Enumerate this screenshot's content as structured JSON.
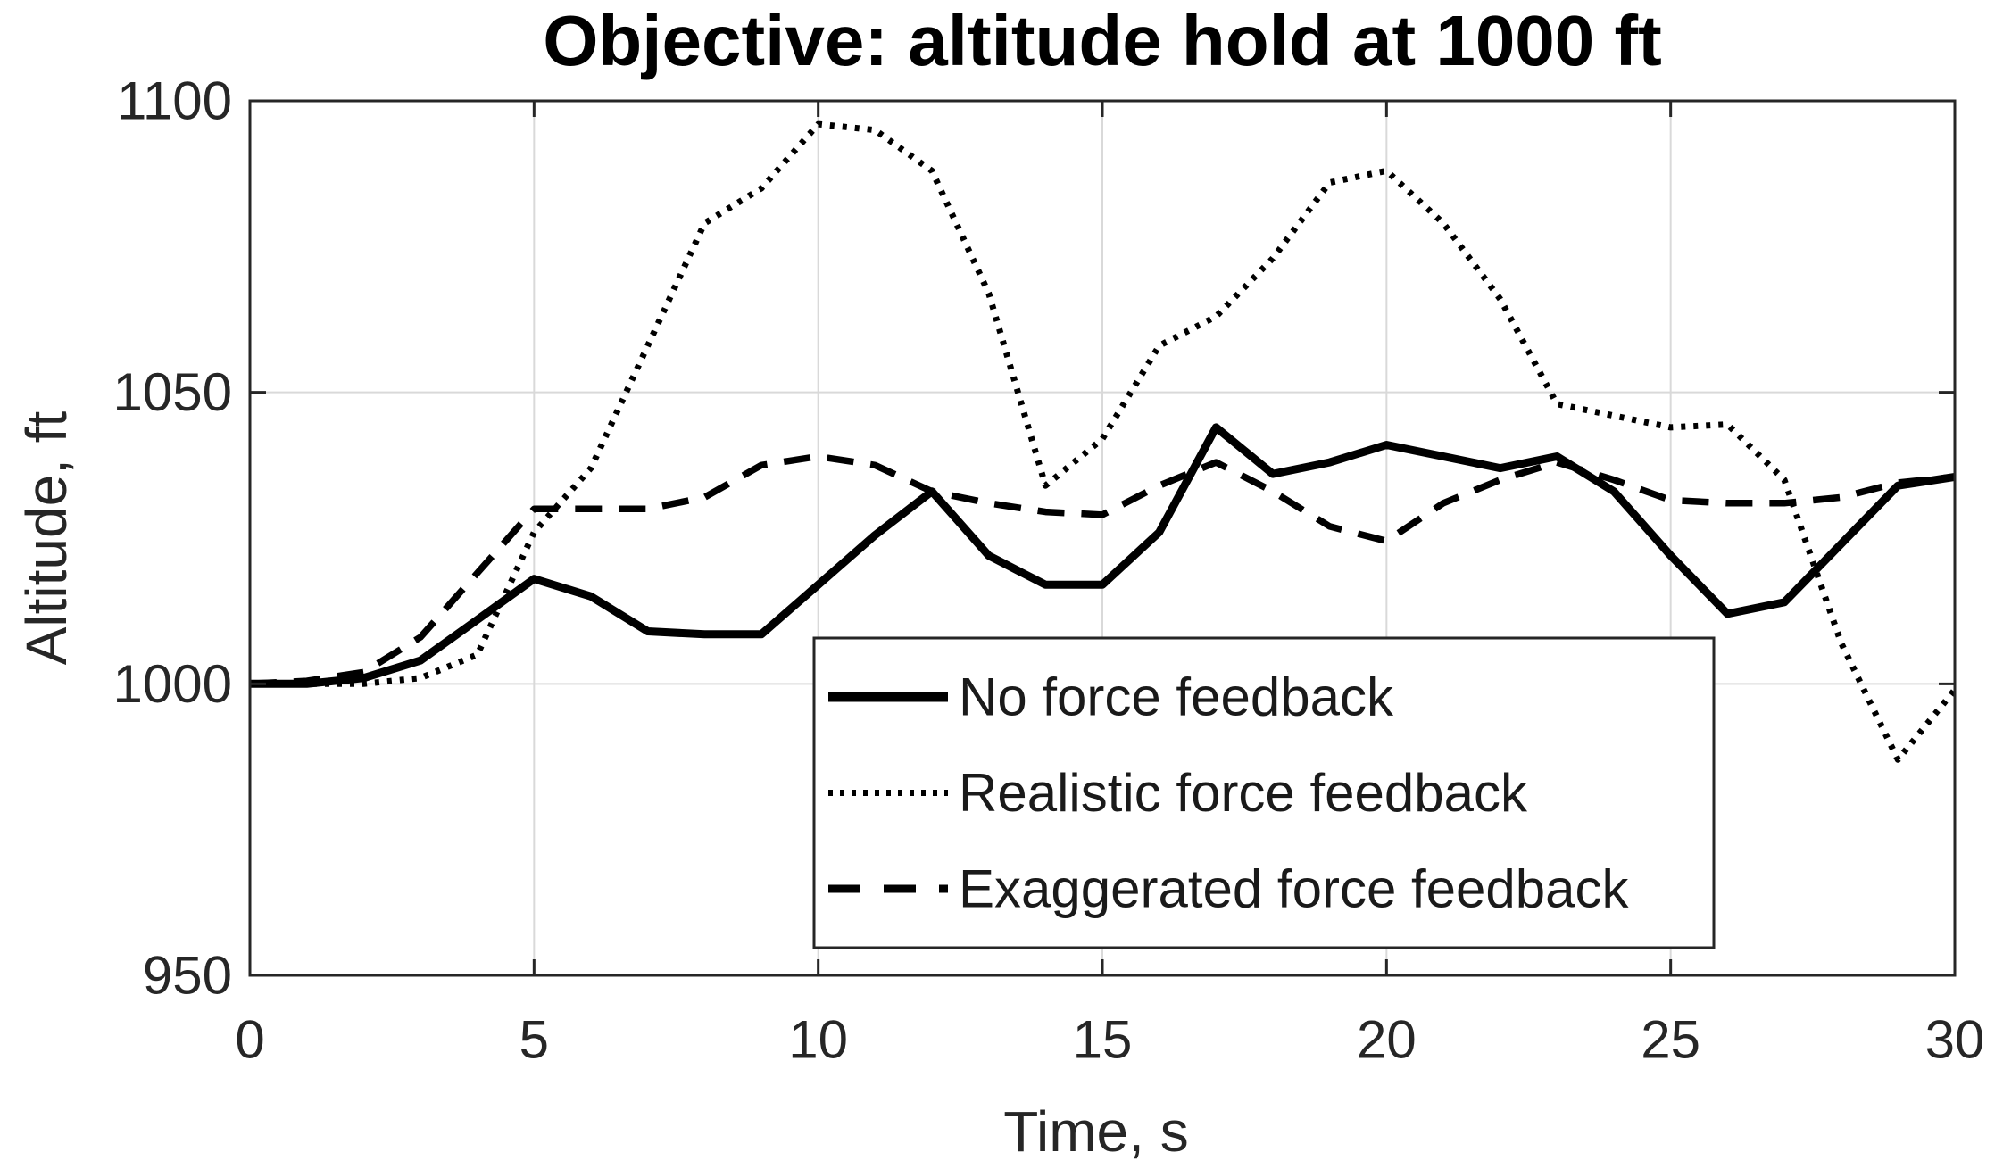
{
  "title": "Objective: altitude hold at 1000 ft",
  "x_axis": {
    "label": "Time, s",
    "ticks": [
      "0",
      "5",
      "10",
      "15",
      "20",
      "25",
      "30"
    ]
  },
  "y_axis": {
    "label": "Altitude, ft",
    "ticks": [
      "950",
      "1000",
      "1050",
      "1100"
    ]
  },
  "legend": {
    "entries": [
      {
        "label": "No force feedback",
        "style": "solid"
      },
      {
        "label": "Realistic force feedback",
        "style": "dotted"
      },
      {
        "label": "Exaggerated force feedback",
        "style": "dashed"
      }
    ]
  },
  "colors": {
    "line": "#000000",
    "axis": "#262626",
    "grid": "#d9d9d9",
    "background": "#ffffff",
    "title": "#000000",
    "tick_text": "#262626"
  },
  "chart_data": {
    "type": "line",
    "title": "Objective: altitude hold at 1000 ft",
    "xlabel": "Time, s",
    "ylabel": "Altitude, ft",
    "xlim": [
      0,
      30
    ],
    "ylim": [
      950,
      1100
    ],
    "x_ticks": [
      0,
      5,
      10,
      15,
      20,
      25,
      30
    ],
    "y_ticks": [
      950,
      1000,
      1050,
      1100
    ],
    "grid": true,
    "legend_position": "inside-bottom-center",
    "x": [
      0,
      1,
      2,
      3,
      4,
      5,
      6,
      7,
      8,
      9,
      10,
      11,
      12,
      13,
      14,
      15,
      16,
      17,
      18,
      19,
      20,
      21,
      22,
      23,
      24,
      25,
      26,
      27,
      28,
      29,
      30
    ],
    "series": [
      {
        "name": "No force feedback",
        "style": "solid",
        "values": [
          1000,
          1000,
          1001,
          1004,
          1011,
          1018,
          1015,
          1009,
          1008.5,
          1008.5,
          1017,
          1025.5,
          1033,
          1022,
          1017,
          1017,
          1026,
          1044,
          1036,
          1038,
          1041,
          1039,
          1037,
          1039,
          1033,
          1022,
          1012,
          1014,
          1024,
          1034,
          1035.5
        ]
      },
      {
        "name": "Realistic force feedback",
        "style": "dotted",
        "values": [
          1000,
          1000,
          1000,
          1001,
          1005,
          1026,
          1037,
          1058,
          1079,
          1085,
          1096,
          1095,
          1088,
          1067,
          1034,
          1042,
          1058,
          1063,
          1073,
          1086,
          1088,
          1079,
          1066,
          1048,
          1046,
          1044,
          1044.5,
          1035,
          1007,
          987,
          999
        ]
      },
      {
        "name": "Exaggerated force feedback",
        "style": "dashed",
        "values": [
          1000,
          1000.5,
          1002,
          1008,
          1019,
          1030,
          1030,
          1030,
          1032,
          1037.5,
          1039,
          1037.5,
          1033,
          1031,
          1029.5,
          1029,
          1034,
          1038,
          1033,
          1027,
          1024.5,
          1031,
          1035,
          1038,
          1035,
          1031.5,
          1031,
          1031,
          1032,
          1034.5,
          1035.5
        ]
      }
    ]
  }
}
